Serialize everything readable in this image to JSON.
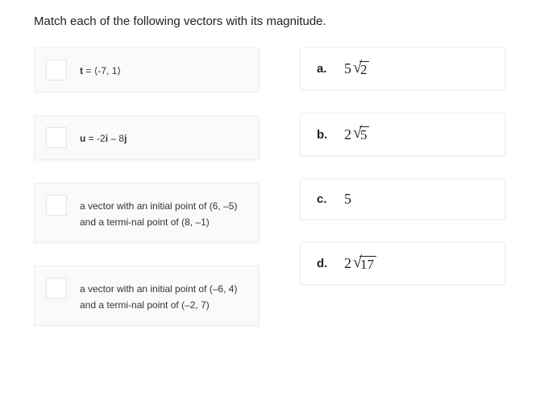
{
  "prompt": "Match each of the following vectors with its magnitude.",
  "questions": [
    {
      "html": "<span class='bold-var'>t</span> = ⟨-7, 1⟩"
    },
    {
      "html": "<span class='bold-var'>u</span> = -2<span class='bold-var'>i</span> – 8<span class='bold-var'>j</span>"
    },
    {
      "html": "a vector with an initial point of (6, –5) and a termi-nal point of (8, –1)"
    },
    {
      "html": "a vector with an initial point of (–6, 4) and a termi-nal point of (–2, 7)"
    }
  ],
  "answers": [
    {
      "letter": "a.",
      "coef": "5",
      "radicand": "2"
    },
    {
      "letter": "b.",
      "coef": "2",
      "radicand": "5"
    },
    {
      "letter": "c.",
      "coef": "5",
      "radicand": ""
    },
    {
      "letter": "d.",
      "coef": "2",
      "radicand": "17"
    }
  ]
}
